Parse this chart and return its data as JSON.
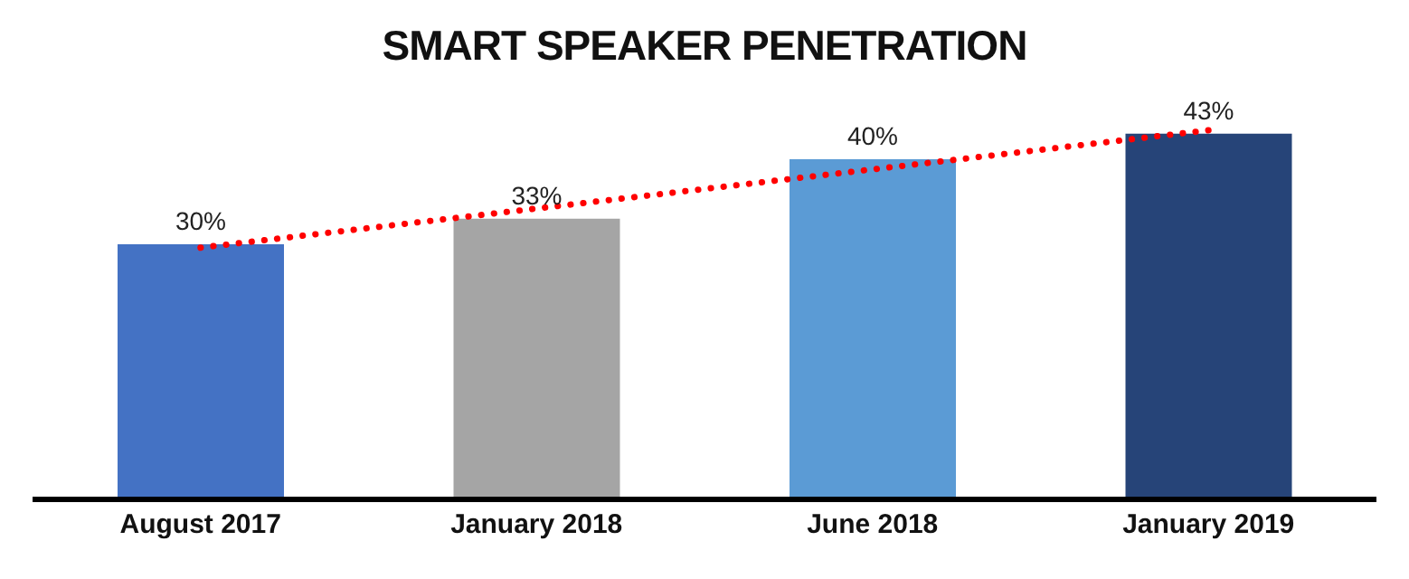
{
  "chart_data": {
    "type": "bar",
    "title": "SMART SPEAKER PENETRATION",
    "categories": [
      "August 2017",
      "January 2018",
      "June 2018",
      "January 2019"
    ],
    "series": [
      {
        "colors": [
          "#4472c4",
          "#a5a5a5",
          "#5b9bd5",
          "#264478"
        ],
        "values": [
          30,
          33,
          40,
          43
        ],
        "value_labels": [
          "30%",
          "33%",
          "40%",
          "43%"
        ]
      },
      {
        "type": "line",
        "color": "#ff0000",
        "line_style": "dotted",
        "marker": "none",
        "values": [
          29.6,
          34.2,
          38.8,
          43.4
        ]
      }
    ]
  }
}
